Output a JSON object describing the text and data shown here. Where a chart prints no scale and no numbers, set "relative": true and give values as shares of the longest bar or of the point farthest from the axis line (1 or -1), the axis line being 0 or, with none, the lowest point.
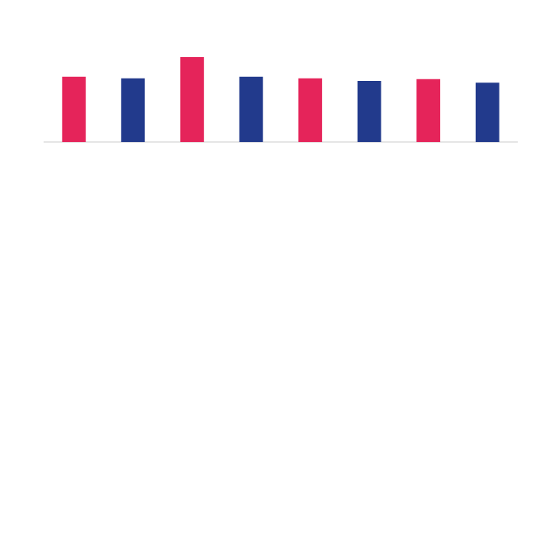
{
  "chart_data": {
    "type": "bar",
    "relative": true,
    "categories": [
      null,
      null,
      null,
      null,
      null,
      null,
      null,
      null
    ],
    "values": [
      0.77,
      0.75,
      1,
      0.77,
      0.75,
      0.72,
      0.74,
      0.7
    ],
    "colors": [
      "#e5245a",
      "#223a8c",
      "#e5245a",
      "#223a8c",
      "#e5245a",
      "#223a8c",
      "#e5245a",
      "#223a8c"
    ],
    "legend": false
  }
}
